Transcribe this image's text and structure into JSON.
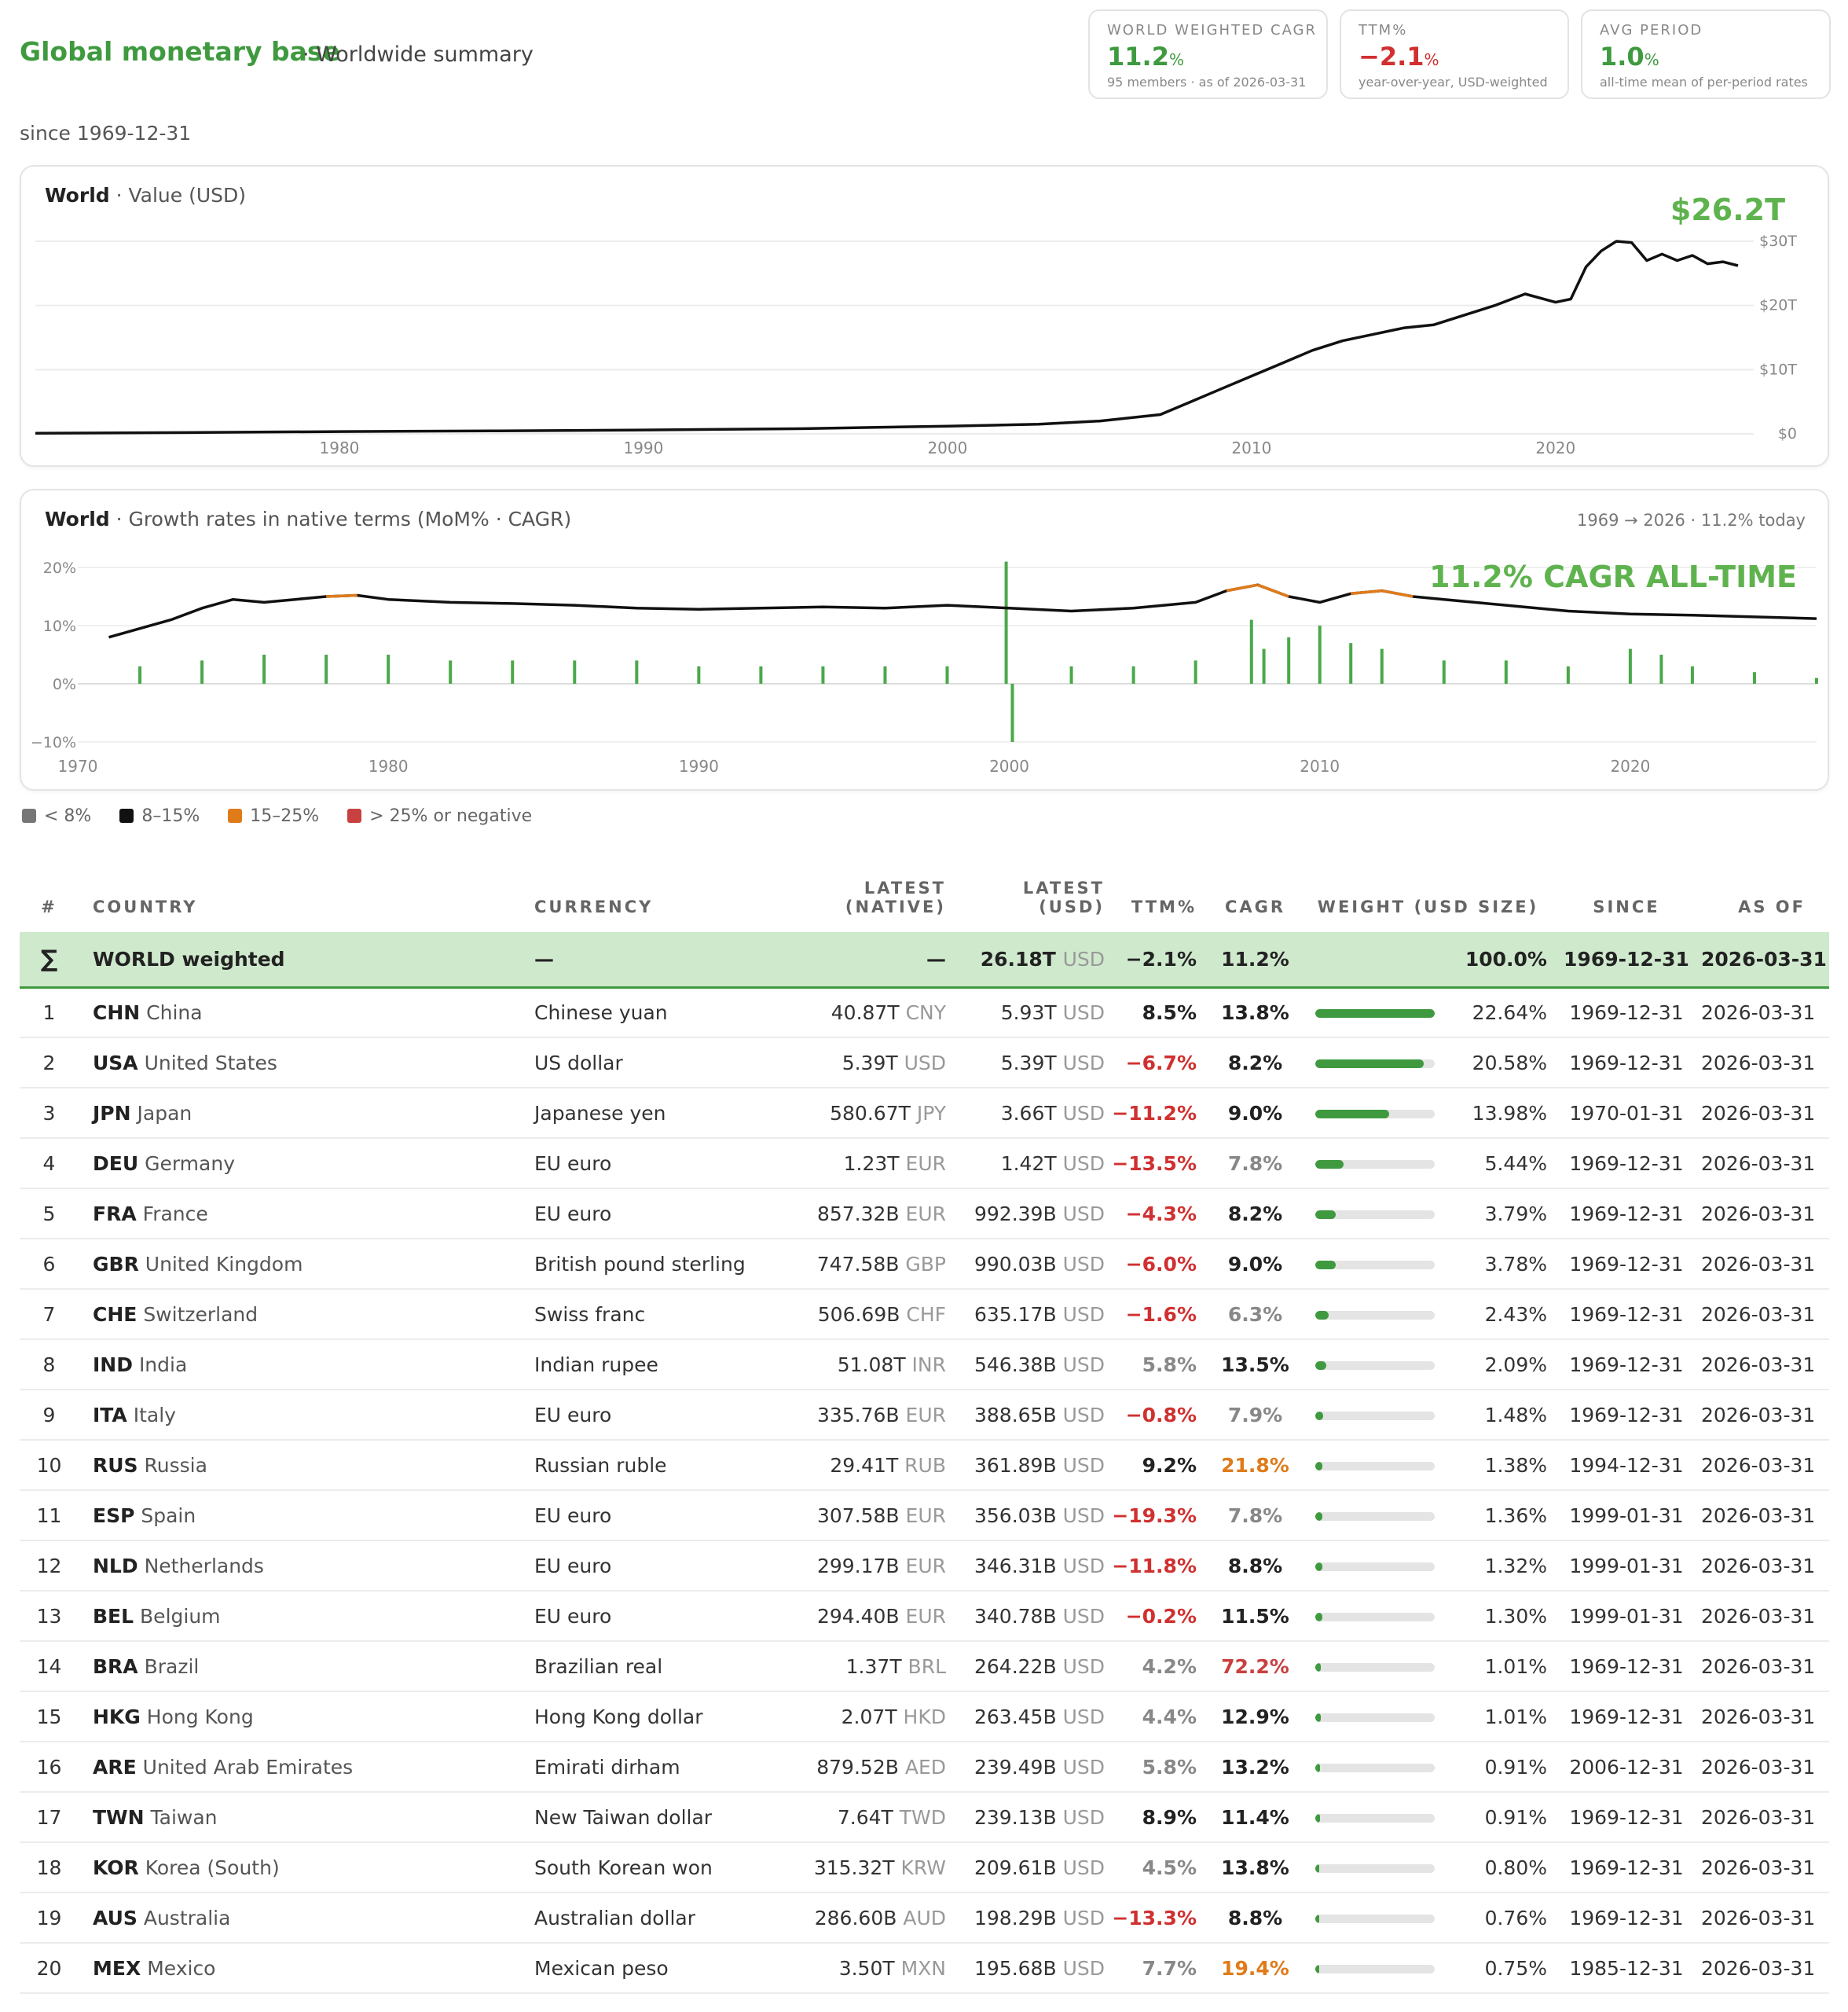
{
  "header": {
    "title": "Global monetary base",
    "subtitle": "· Worldwide summary",
    "since": "since 1969-12-31"
  },
  "kpis": [
    {
      "label": "WORLD WEIGHTED CAGR",
      "value": "11.2",
      "unit": "%",
      "sub": "95 members · as of 2026-03-31",
      "color": "#3f9a3f"
    },
    {
      "label": "TTM%",
      "value": "−2.1",
      "unit": "%",
      "sub": "year-over-year, USD-weighted",
      "color": "#d03030"
    },
    {
      "label": "AVG PERIOD",
      "value": "1.0",
      "unit": "%",
      "sub": "all-time mean of per-period rates",
      "color": "#3f9a3f"
    }
  ],
  "value_panel": {
    "title": "World",
    "subtitle": "· Value (USD)",
    "callout": "$26.2T"
  },
  "growth_panel": {
    "title": "World",
    "subtitle": "· Growth rates in native terms (MoM% · CAGR)",
    "right": "1969 → 2026 · 11.2% today",
    "callout": "11.2% CAGR ALL-TIME"
  },
  "legend": [
    {
      "label": "< 8%",
      "color": "#777777"
    },
    {
      "label": "8–15%",
      "color": "#111111"
    },
    {
      "label": "15–25%",
      "color": "#e07b1a"
    },
    {
      "label": "> 25% or negative",
      "color": "#c94040"
    }
  ],
  "chart_data": [
    {
      "type": "line",
      "title": "World · Value (USD)",
      "xlabel": "",
      "ylabel": "",
      "x_ticks": [
        "1980",
        "1990",
        "2000",
        "2010",
        "2020"
      ],
      "y_ticks": [
        "$0",
        "$10T",
        "$20T",
        "$30T"
      ],
      "ylim": [
        0,
        30
      ],
      "unit": "T USD",
      "series": [
        {
          "x": [
            1970,
            1975,
            1980,
            1985,
            1990,
            1995,
            2000,
            2003,
            2005,
            2007,
            2008,
            2009,
            2010,
            2011,
            2012,
            2013,
            2014,
            2015,
            2016,
            2017,
            2018,
            2019,
            2020,
            2020.5,
            2021,
            2021.5,
            2022,
            2022.5,
            2023,
            2023.5,
            2024,
            2024.5,
            2025,
            2025.5,
            2026
          ],
          "y": [
            0.1,
            0.2,
            0.35,
            0.45,
            0.6,
            0.8,
            1.2,
            1.5,
            2.0,
            3.0,
            5.0,
            7.0,
            9.0,
            11.0,
            13.0,
            14.5,
            15.5,
            16.5,
            17.0,
            18.5,
            20.0,
            21.8,
            20.5,
            21.0,
            26.0,
            28.5,
            30.0,
            29.8,
            27.0,
            28.0,
            27.0,
            27.8,
            26.5,
            26.8,
            26.2
          ]
        }
      ],
      "grid": true
    },
    {
      "type": "line",
      "title": "World · Growth rates in native terms (MoM% · CAGR)",
      "xlabel": "",
      "ylabel": "",
      "x_ticks": [
        "1970",
        "1980",
        "1990",
        "2000",
        "2010",
        "2020"
      ],
      "y_ticks": [
        "20%",
        "10%",
        "0%",
        "−10%"
      ],
      "ylim": [
        -10,
        20
      ],
      "series": [
        {
          "kind": "line",
          "x": [
            1971,
            1972,
            1973,
            1974,
            1975,
            1976,
            1977,
            1978,
            1979,
            1980,
            1982,
            1984,
            1986,
            1988,
            1990,
            1992,
            1994,
            1996,
            1998,
            2000,
            2002,
            2004,
            2006,
            2007,
            2008,
            2009,
            2010,
            2011,
            2012,
            2013,
            2014,
            2016,
            2018,
            2020,
            2022,
            2024,
            2026
          ],
          "y": [
            8,
            9.5,
            11,
            13,
            14.5,
            14,
            14.5,
            15,
            15.2,
            14.5,
            14,
            13.8,
            13.5,
            13,
            12.8,
            13,
            13.2,
            13,
            13.5,
            13,
            12.5,
            13,
            14,
            16,
            17,
            15,
            14,
            15.5,
            16,
            15,
            14.5,
            13.5,
            12.5,
            12,
            11.8,
            11.5,
            11.2
          ]
        },
        {
          "kind": "bar",
          "x": [
            1972,
            1974,
            1976,
            1978,
            1980,
            1982,
            1984,
            1986,
            1988,
            1990,
            1992,
            1994,
            1996,
            1998,
            1999.9,
            2000.1,
            2002,
            2004,
            2006,
            2007.8,
            2008.2,
            2009,
            2010,
            2011,
            2012,
            2014,
            2016,
            2018,
            2020,
            2021,
            2022,
            2024,
            2026
          ],
          "y": [
            3,
            4,
            5,
            5,
            5,
            4,
            4,
            4,
            4,
            3,
            3,
            3,
            3,
            3,
            21,
            -10,
            3,
            3,
            4,
            11,
            6,
            8,
            10,
            7,
            6,
            4,
            4,
            3,
            6,
            5,
            3,
            2,
            1
          ]
        }
      ],
      "grid": true
    }
  ],
  "table": {
    "headers": {
      "rank": "#",
      "country": "COUNTRY",
      "currency": "CURRENCY",
      "native1": "LATEST",
      "native2": "(NATIVE)",
      "usd1": "LATEST",
      "usd2": "(USD)",
      "ttm": "TTM%",
      "cagr": "CAGR",
      "weight": "WEIGHT (USD SIZE)",
      "since": "SINCE",
      "asof": "AS OF"
    },
    "world": {
      "rank": "∑",
      "name": "WORLD weighted",
      "currency": "—",
      "native": "—",
      "usd": "26.18T",
      "usd_unit": "USD",
      "ttm": "−2.1%",
      "cagr": "11.2%",
      "weight": "100.0%",
      "since": "1969-12-31",
      "asof": "2026-03-31"
    },
    "rows": [
      {
        "rank": "1",
        "code": "CHN",
        "name": "China",
        "currency": "Chinese yuan",
        "native": "40.87T",
        "nu": "CNY",
        "usd": "5.93T",
        "uu": "USD",
        "ttm": "8.5%",
        "ttm_cls": "pos",
        "cagr": "13.8%",
        "cagr_cls": "pos",
        "weight": "22.64%",
        "w": 1.0,
        "since": "1969-12-31",
        "asof": "2026-03-31"
      },
      {
        "rank": "2",
        "code": "USA",
        "name": "United States",
        "currency": "US dollar",
        "native": "5.39T",
        "nu": "USD",
        "usd": "5.39T",
        "uu": "USD",
        "ttm": "−6.7%",
        "ttm_cls": "neg",
        "cagr": "8.2%",
        "cagr_cls": "pos",
        "weight": "20.58%",
        "w": 0.91,
        "since": "1969-12-31",
        "asof": "2026-03-31"
      },
      {
        "rank": "3",
        "code": "JPN",
        "name": "Japan",
        "currency": "Japanese yen",
        "native": "580.67T",
        "nu": "JPY",
        "usd": "3.66T",
        "uu": "USD",
        "ttm": "−11.2%",
        "ttm_cls": "neg",
        "cagr": "9.0%",
        "cagr_cls": "pos",
        "weight": "13.98%",
        "w": 0.62,
        "since": "1970-01-31",
        "asof": "2026-03-31"
      },
      {
        "rank": "4",
        "code": "DEU",
        "name": "Germany",
        "currency": "EU euro",
        "native": "1.23T",
        "nu": "EUR",
        "usd": "1.42T",
        "uu": "USD",
        "ttm": "−13.5%",
        "ttm_cls": "neg",
        "cagr": "7.8%",
        "cagr_cls": "dim",
        "weight": "5.44%",
        "w": 0.24,
        "since": "1969-12-31",
        "asof": "2026-03-31"
      },
      {
        "rank": "5",
        "code": "FRA",
        "name": "France",
        "currency": "EU euro",
        "native": "857.32B",
        "nu": "EUR",
        "usd": "992.39B",
        "uu": "USD",
        "ttm": "−4.3%",
        "ttm_cls": "neg",
        "cagr": "8.2%",
        "cagr_cls": "pos",
        "weight": "3.79%",
        "w": 0.17,
        "since": "1969-12-31",
        "asof": "2026-03-31"
      },
      {
        "rank": "6",
        "code": "GBR",
        "name": "United Kingdom",
        "currency": "British pound sterling",
        "native": "747.58B",
        "nu": "GBP",
        "usd": "990.03B",
        "uu": "USD",
        "ttm": "−6.0%",
        "ttm_cls": "neg",
        "cagr": "9.0%",
        "cagr_cls": "pos",
        "weight": "3.78%",
        "w": 0.17,
        "since": "1969-12-31",
        "asof": "2026-03-31"
      },
      {
        "rank": "7",
        "code": "CHE",
        "name": "Switzerland",
        "currency": "Swiss franc",
        "native": "506.69B",
        "nu": "CHF",
        "usd": "635.17B",
        "uu": "USD",
        "ttm": "−1.6%",
        "ttm_cls": "neg",
        "cagr": "6.3%",
        "cagr_cls": "dim",
        "weight": "2.43%",
        "w": 0.11,
        "since": "1969-12-31",
        "asof": "2026-03-31"
      },
      {
        "rank": "8",
        "code": "IND",
        "name": "India",
        "currency": "Indian rupee",
        "native": "51.08T",
        "nu": "INR",
        "usd": "546.38B",
        "uu": "USD",
        "ttm": "5.8%",
        "ttm_cls": "dim",
        "cagr": "13.5%",
        "cagr_cls": "pos",
        "weight": "2.09%",
        "w": 0.09,
        "since": "1969-12-31",
        "asof": "2026-03-31"
      },
      {
        "rank": "9",
        "code": "ITA",
        "name": "Italy",
        "currency": "EU euro",
        "native": "335.76B",
        "nu": "EUR",
        "usd": "388.65B",
        "uu": "USD",
        "ttm": "−0.8%",
        "ttm_cls": "neg",
        "cagr": "7.9%",
        "cagr_cls": "dim",
        "weight": "1.48%",
        "w": 0.065,
        "since": "1969-12-31",
        "asof": "2026-03-31"
      },
      {
        "rank": "10",
        "code": "RUS",
        "name": "Russia",
        "currency": "Russian ruble",
        "native": "29.41T",
        "nu": "RUB",
        "usd": "361.89B",
        "uu": "USD",
        "ttm": "9.2%",
        "ttm_cls": "pos",
        "cagr": "21.8%",
        "cagr_cls": "orange",
        "weight": "1.38%",
        "w": 0.06,
        "since": "1994-12-31",
        "asof": "2026-03-31"
      },
      {
        "rank": "11",
        "code": "ESP",
        "name": "Spain",
        "currency": "EU euro",
        "native": "307.58B",
        "nu": "EUR",
        "usd": "356.03B",
        "uu": "USD",
        "ttm": "−19.3%",
        "ttm_cls": "neg",
        "cagr": "7.8%",
        "cagr_cls": "dim",
        "weight": "1.36%",
        "w": 0.06,
        "since": "1999-01-31",
        "asof": "2026-03-31"
      },
      {
        "rank": "12",
        "code": "NLD",
        "name": "Netherlands",
        "currency": "EU euro",
        "native": "299.17B",
        "nu": "EUR",
        "usd": "346.31B",
        "uu": "USD",
        "ttm": "−11.8%",
        "ttm_cls": "neg",
        "cagr": "8.8%",
        "cagr_cls": "pos",
        "weight": "1.32%",
        "w": 0.058,
        "since": "1999-01-31",
        "asof": "2026-03-31"
      },
      {
        "rank": "13",
        "code": "BEL",
        "name": "Belgium",
        "currency": "EU euro",
        "native": "294.40B",
        "nu": "EUR",
        "usd": "340.78B",
        "uu": "USD",
        "ttm": "−0.2%",
        "ttm_cls": "neg",
        "cagr": "11.5%",
        "cagr_cls": "pos",
        "weight": "1.30%",
        "w": 0.057,
        "since": "1999-01-31",
        "asof": "2026-03-31"
      },
      {
        "rank": "14",
        "code": "BRA",
        "name": "Brazil",
        "currency": "Brazilian real",
        "native": "1.37T",
        "nu": "BRL",
        "usd": "264.22B",
        "uu": "USD",
        "ttm": "4.2%",
        "ttm_cls": "dim",
        "cagr": "72.2%",
        "cagr_cls": "red2",
        "weight": "1.01%",
        "w": 0.045,
        "since": "1969-12-31",
        "asof": "2026-03-31"
      },
      {
        "rank": "15",
        "code": "HKG",
        "name": "Hong Kong",
        "currency": "Hong Kong dollar",
        "native": "2.07T",
        "nu": "HKD",
        "usd": "263.45B",
        "uu": "USD",
        "ttm": "4.4%",
        "ttm_cls": "dim",
        "cagr": "12.9%",
        "cagr_cls": "pos",
        "weight": "1.01%",
        "w": 0.045,
        "since": "1969-12-31",
        "asof": "2026-03-31"
      },
      {
        "rank": "16",
        "code": "ARE",
        "name": "United Arab Emirates",
        "currency": "Emirati dirham",
        "native": "879.52B",
        "nu": "AED",
        "usd": "239.49B",
        "uu": "USD",
        "ttm": "5.8%",
        "ttm_cls": "dim",
        "cagr": "13.2%",
        "cagr_cls": "pos",
        "weight": "0.91%",
        "w": 0.04,
        "since": "2006-12-31",
        "asof": "2026-03-31"
      },
      {
        "rank": "17",
        "code": "TWN",
        "name": "Taiwan",
        "currency": "New Taiwan dollar",
        "native": "7.64T",
        "nu": "TWD",
        "usd": "239.13B",
        "uu": "USD",
        "ttm": "8.9%",
        "ttm_cls": "pos",
        "cagr": "11.4%",
        "cagr_cls": "pos",
        "weight": "0.91%",
        "w": 0.04,
        "since": "1969-12-31",
        "asof": "2026-03-31"
      },
      {
        "rank": "18",
        "code": "KOR",
        "name": "Korea (South)",
        "currency": "South Korean won",
        "native": "315.32T",
        "nu": "KRW",
        "usd": "209.61B",
        "uu": "USD",
        "ttm": "4.5%",
        "ttm_cls": "dim",
        "cagr": "13.8%",
        "cagr_cls": "pos",
        "weight": "0.80%",
        "w": 0.035,
        "since": "1969-12-31",
        "asof": "2026-03-31"
      },
      {
        "rank": "19",
        "code": "AUS",
        "name": "Australia",
        "currency": "Australian dollar",
        "native": "286.60B",
        "nu": "AUD",
        "usd": "198.29B",
        "uu": "USD",
        "ttm": "−13.3%",
        "ttm_cls": "neg",
        "cagr": "8.8%",
        "cagr_cls": "pos",
        "weight": "0.76%",
        "w": 0.034,
        "since": "1969-12-31",
        "asof": "2026-03-31"
      },
      {
        "rank": "20",
        "code": "MEX",
        "name": "Mexico",
        "currency": "Mexican peso",
        "native": "3.50T",
        "nu": "MXN",
        "usd": "195.68B",
        "uu": "USD",
        "ttm": "7.7%",
        "ttm_cls": "dim",
        "cagr": "19.4%",
        "cagr_cls": "orange",
        "weight": "0.75%",
        "w": 0.033,
        "since": "1985-12-31",
        "asof": "2026-03-31"
      }
    ]
  }
}
